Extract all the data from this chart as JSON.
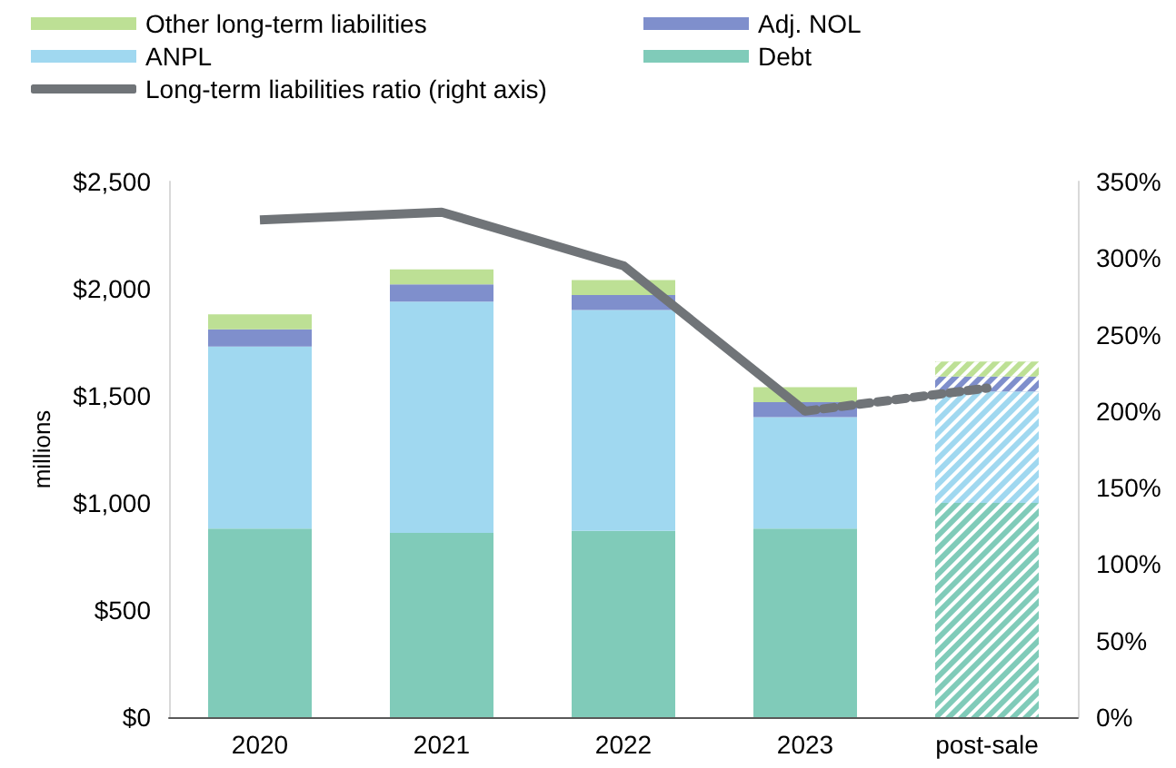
{
  "chart_data": {
    "type": "bar",
    "stacked": true,
    "ylabel": "millions",
    "categories": [
      "2020",
      "2021",
      "2022",
      "2023",
      "post-sale"
    ],
    "series": [
      {
        "name": "Debt",
        "color": "#80cbb9",
        "values": [
          880,
          860,
          870,
          880,
          1000
        ]
      },
      {
        "name": "ANPL",
        "color": "#a0d8f0",
        "values": [
          850,
          1080,
          1030,
          520,
          520
        ]
      },
      {
        "name": "Adj. NOL",
        "color": "#7f8fcc",
        "values": [
          80,
          80,
          70,
          70,
          70
        ]
      },
      {
        "name": "Other long-term liabilities",
        "color": "#bde095",
        "values": [
          70,
          70,
          70,
          70,
          70
        ]
      },
      {
        "name": "Long-term liabilities ratio (right axis)",
        "type": "line",
        "axis": "y2",
        "color": "#707478",
        "line_style": "solid",
        "values": [
          325,
          330,
          295,
          200,
          null
        ]
      },
      {
        "type": "line",
        "axis": "y2",
        "color": "#707478",
        "line_style": "dashed",
        "values": [
          null,
          null,
          null,
          200,
          215
        ]
      }
    ],
    "ylim": [
      0,
      2500
    ],
    "yticks": [
      {
        "value": 0,
        "label": "$0"
      },
      {
        "value": 500,
        "label": "$500"
      },
      {
        "value": 1000,
        "label": "$1,000"
      },
      {
        "value": 1500,
        "label": "$1,500"
      },
      {
        "value": 2000,
        "label": "$2,000"
      },
      {
        "value": 2500,
        "label": "$2,500"
      }
    ],
    "y2lim": [
      0,
      350
    ],
    "y2ticks": [
      {
        "value": 0,
        "label": "0%"
      },
      {
        "value": 50,
        "label": "50%"
      },
      {
        "value": 100,
        "label": "100%"
      },
      {
        "value": 150,
        "label": "150%"
      },
      {
        "value": 200,
        "label": "200%"
      },
      {
        "value": 250,
        "label": "250%"
      },
      {
        "value": 300,
        "label": "300%"
      },
      {
        "value": 350,
        "label": "350%"
      }
    ],
    "grid": false,
    "legend": "top",
    "marker": "none"
  }
}
